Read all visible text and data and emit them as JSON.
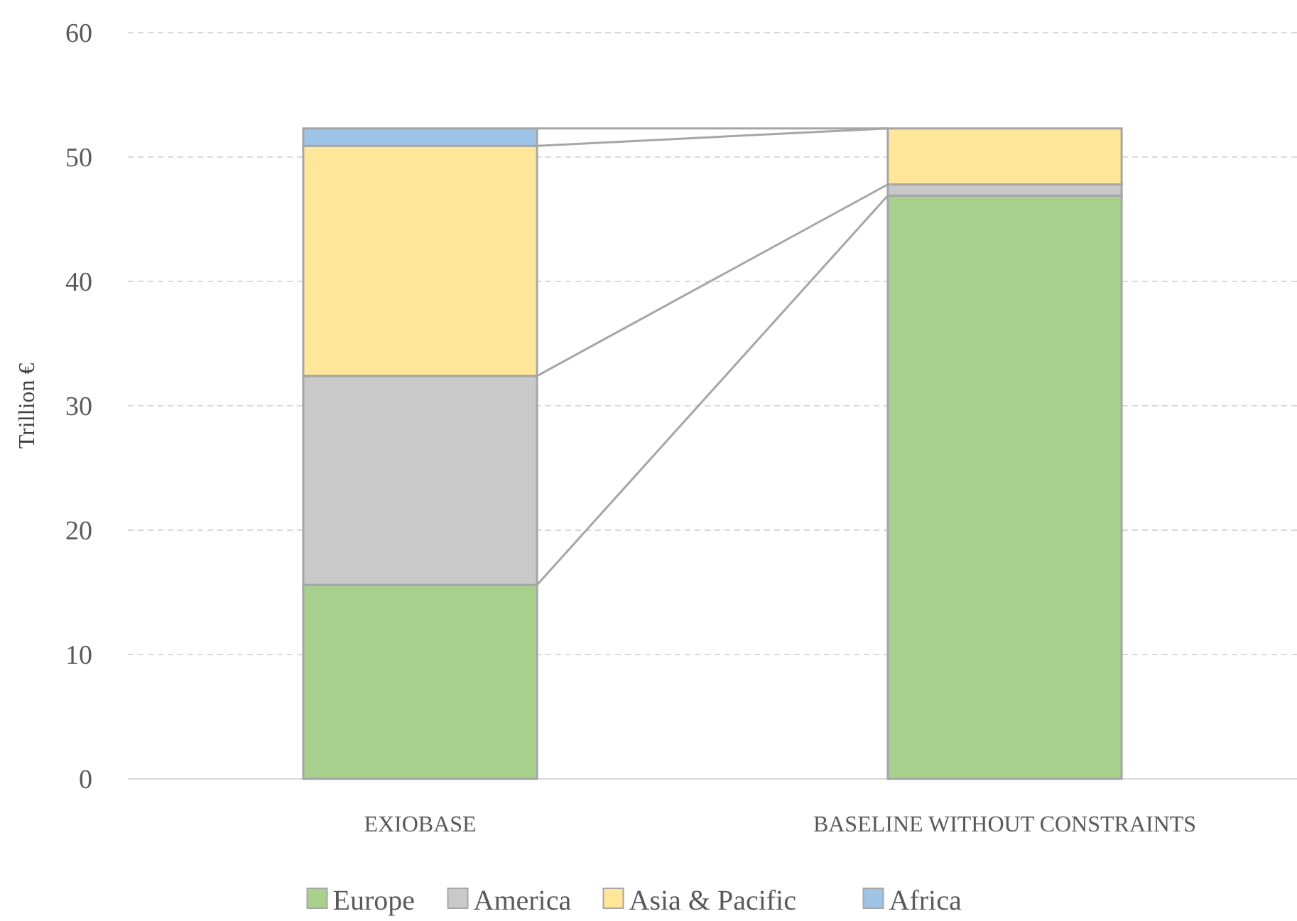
{
  "chart_data": {
    "type": "bar",
    "stacked": true,
    "ylabel": "Trillion €",
    "categories": [
      "EXIOBASE",
      "BASELINE WITHOUT CONSTRAINTS"
    ],
    "series": [
      {
        "name": "Europe",
        "color": "#a9d18e",
        "values": [
          15.6,
          46.9
        ]
      },
      {
        "name": "America",
        "color": "#c9c9c9",
        "values": [
          16.8,
          0.9
        ]
      },
      {
        "name": "Asia & Pacific",
        "color": "#ffe699",
        "values": [
          18.5,
          4.5
        ]
      },
      {
        "name": "Africa",
        "color": "#9dc3e6",
        "values": [
          1.4,
          0
        ]
      }
    ],
    "ylim": [
      0,
      60
    ],
    "yticks": [
      0,
      10,
      20,
      30,
      40,
      50,
      60
    ],
    "grid": "y",
    "legend": "bottom"
  }
}
